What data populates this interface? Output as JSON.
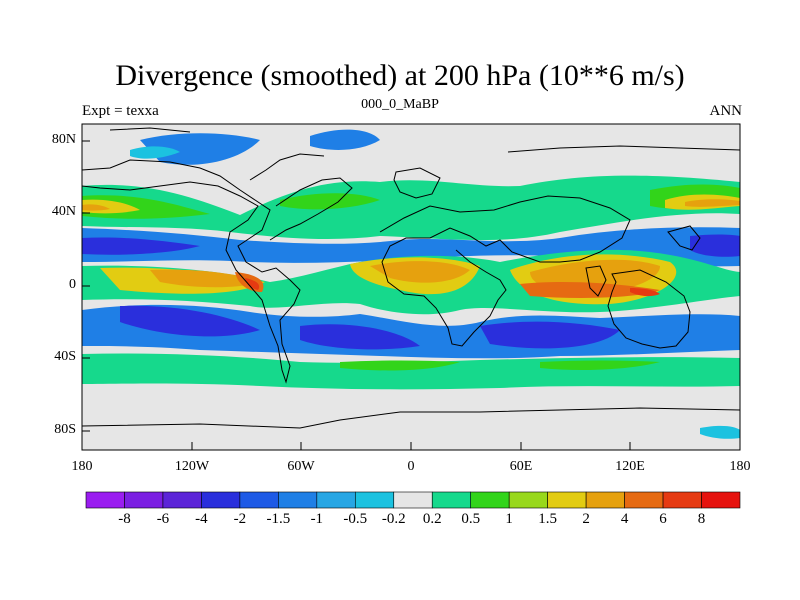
{
  "title": "Divergence (smoothed) at 200 hPa (10**6 m/s)",
  "subtitle_left": "Expt = texxa",
  "subtitle_center": "000_0_MaBP",
  "subtitle_right": "ANN",
  "map": {
    "projection": "cylindrical equidistant",
    "lon_range": [
      -180,
      180
    ],
    "lat_range": [
      -90,
      90
    ],
    "x_tick_labels": [
      "180",
      "120W",
      "60W",
      "0",
      "60E",
      "120E",
      "180"
    ],
    "y_tick_labels": [
      "80N",
      "40N",
      "0",
      "40S",
      "80S"
    ],
    "variable": "Divergence (smoothed) at 200 hPa",
    "units": "10**6 m/s"
  },
  "colorbar": {
    "labels": [
      "-8",
      "-6",
      "-4",
      "-2",
      "-1.5",
      "-1",
      "-0.5",
      "-0.2",
      "0.2",
      "0.5",
      "1",
      "1.5",
      "2",
      "4",
      "6",
      "8"
    ],
    "colors": [
      "#9a1df0",
      "#7b1fe2",
      "#5c25d8",
      "#2a2fdc",
      "#1e5ae6",
      "#1f7fe6",
      "#27a6e4",
      "#1cc2e0",
      "#e6e6e6",
      "#16d98c",
      "#32d41a",
      "#98d81c",
      "#e2cc12",
      "#e6a10e",
      "#e66a12",
      "#e63a12",
      "#e6120e"
    ]
  }
}
